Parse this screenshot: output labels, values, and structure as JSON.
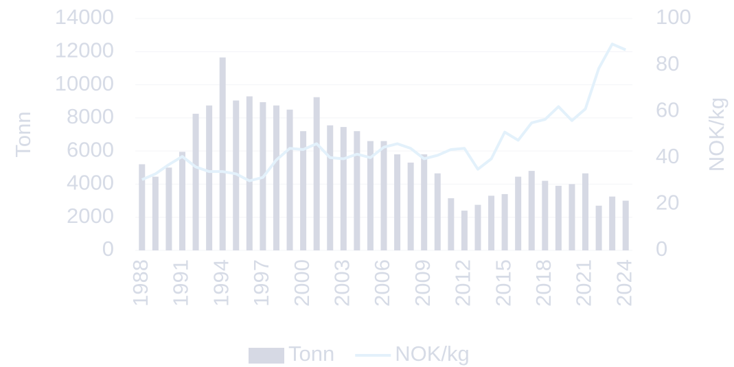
{
  "chart_data": {
    "type": "bar_line",
    "categories": [
      "1988",
      null,
      null,
      "1991",
      null,
      null,
      "1994",
      null,
      null,
      "1997",
      null,
      null,
      "2000",
      null,
      null,
      "2003",
      null,
      null,
      "2006",
      null,
      null,
      "2009",
      null,
      null,
      "2012",
      null,
      null,
      "2015",
      null,
      null,
      "2018",
      null,
      null,
      "2021",
      null,
      null,
      "2024"
    ],
    "series": [
      {
        "name": "Tonn",
        "type": "bar",
        "color": "#d6d9e4",
        "values": [
          5200,
          4450,
          5000,
          5950,
          8250,
          8750,
          11650,
          9050,
          9300,
          8950,
          8750,
          8500,
          7200,
          9250,
          7550,
          7450,
          7200,
          6600,
          6600,
          5800,
          5300,
          5800,
          4650,
          3150,
          2400,
          2750,
          3300,
          3400,
          4450,
          4800,
          4200,
          3900,
          4000,
          4650,
          2700,
          3250,
          3000
        ]
      },
      {
        "name": "NOK/kg",
        "type": "line",
        "axis": "y2",
        "color": "#e3f1fb",
        "values": [
          30.5,
          33,
          37,
          40.5,
          36,
          34,
          34,
          33,
          30,
          31.5,
          39,
          44,
          43.5,
          46,
          40,
          39.5,
          41.5,
          40,
          44.5,
          46,
          44,
          39.5,
          41,
          43.5,
          44,
          35,
          39.5,
          51,
          47.5,
          55,
          56.5,
          62,
          56,
          61,
          78.5,
          89,
          86.5
        ]
      }
    ],
    "ylabel": "Tonn",
    "y2label": "NOK/kg",
    "ylim": [
      0,
      14000
    ],
    "yticks": [
      0,
      2000,
      4000,
      6000,
      8000,
      10000,
      12000,
      14000
    ],
    "y2lim": [
      0,
      100
    ],
    "y2ticks": [
      0,
      20,
      40,
      60,
      80,
      100
    ],
    "grid": true,
    "legend": "bottom"
  }
}
